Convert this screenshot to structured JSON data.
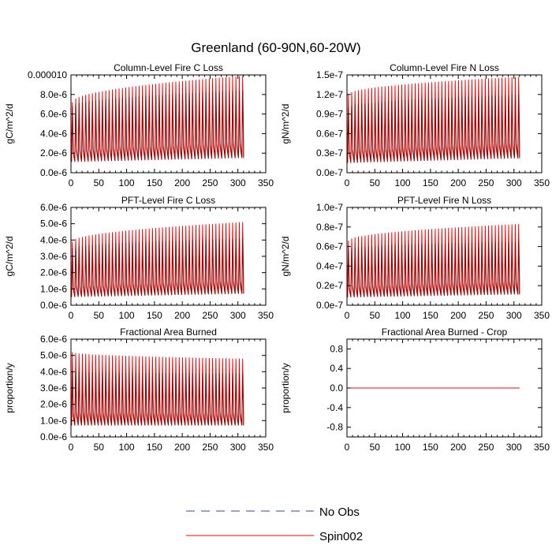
{
  "figure": {
    "title": "Greenland (60-90N,60-20W)"
  },
  "legend": {
    "items": [
      {
        "label": "No Obs",
        "color": "#3344aa",
        "style": "dashed"
      },
      {
        "label": "Spin002",
        "color": "#ff0000",
        "style": "solid"
      }
    ]
  },
  "chart_data": [
    {
      "type": "line",
      "title": "Column-Level Fire C Loss",
      "ylabel": "gC/m^2/d",
      "xlim": [
        0,
        350
      ],
      "ylim": [
        0,
        1e-05
      ],
      "xticks": [
        0,
        50,
        100,
        150,
        200,
        250,
        300,
        350
      ],
      "xtick_labels": [
        "0",
        "50",
        "100",
        "150",
        "200",
        "250",
        "300",
        "350"
      ],
      "yticks": [
        0,
        2e-06,
        4e-06,
        6e-06,
        8e-06,
        1e-05
      ],
      "ytick_labels": [
        "0.0e-6",
        "2.0e-6",
        "4.0e-6",
        "6.0e-6",
        "8.0e-6",
        "0.000010"
      ],
      "series": [
        {
          "name": "Spin002",
          "color": "#ff0000",
          "x_start": 1,
          "x_end": 310,
          "period": 6,
          "peak_start": 7.2e-06,
          "peak_end": 9.9e-06,
          "trough_start": 1.2e-06,
          "trough_end": 1.6e-06
        },
        {
          "name": "",
          "color": "#a00000",
          "x_start": 1,
          "x_end": 310,
          "period": 6,
          "peak_start": 6.8e-06,
          "peak_end": 8.4e-06,
          "trough_start": 1.1e-06,
          "trough_end": 1.5e-06
        }
      ]
    },
    {
      "type": "line",
      "title": "Column-Level Fire N Loss",
      "ylabel": "gN/m^2/d",
      "xlim": [
        0,
        350
      ],
      "ylim": [
        0,
        1.5e-07
      ],
      "xticks": [
        0,
        50,
        100,
        150,
        200,
        250,
        300,
        350
      ],
      "xtick_labels": [
        "0",
        "50",
        "100",
        "150",
        "200",
        "250",
        "300",
        "350"
      ],
      "yticks": [
        0,
        3e-08,
        6e-08,
        9e-08,
        1.2e-07,
        1.5e-07
      ],
      "ytick_labels": [
        "0.0e-7",
        "0.3e-7",
        "0.6e-7",
        "0.9e-7",
        "1.2e-7",
        "1.5e-7"
      ],
      "series": [
        {
          "name": "Spin002",
          "color": "#ff0000",
          "x_start": 1,
          "x_end": 310,
          "period": 6,
          "peak_start": 1.2e-07,
          "peak_end": 1.47e-07,
          "trough_start": 1.6e-08,
          "trough_end": 2.4e-08
        },
        {
          "name": "",
          "color": "#a00000",
          "x_start": 1,
          "x_end": 310,
          "period": 6,
          "peak_start": 1e-07,
          "peak_end": 1.2e-07,
          "trough_start": 1.5e-08,
          "trough_end": 2.2e-08
        }
      ]
    },
    {
      "type": "line",
      "title": "PFT-Level Fire C Loss",
      "ylabel": "gC/m^2/d",
      "xlim": [
        0,
        350
      ],
      "ylim": [
        0,
        6e-06
      ],
      "xticks": [
        0,
        50,
        100,
        150,
        200,
        250,
        300,
        350
      ],
      "xtick_labels": [
        "0",
        "50",
        "100",
        "150",
        "200",
        "250",
        "300",
        "350"
      ],
      "yticks": [
        0,
        1e-06,
        2e-06,
        3e-06,
        4e-06,
        5e-06,
        6e-06
      ],
      "ytick_labels": [
        "0.0e-6",
        "1.0e-6",
        "2.0e-6",
        "3.0e-6",
        "4.0e-6",
        "5.0e-6",
        "6.0e-6"
      ],
      "series": [
        {
          "name": "Spin002",
          "color": "#ff0000",
          "x_start": 1,
          "x_end": 310,
          "period": 6,
          "peak_start": 3.9e-06,
          "peak_end": 5.1e-06,
          "trough_start": 5.5e-07,
          "trough_end": 7.5e-07
        },
        {
          "name": "",
          "color": "#a00000",
          "x_start": 1,
          "x_end": 310,
          "period": 6,
          "peak_start": 3.5e-06,
          "peak_end": 4.1e-06,
          "trough_start": 5e-07,
          "trough_end": 7e-07
        }
      ]
    },
    {
      "type": "line",
      "title": "PFT-Level Fire N Loss",
      "ylabel": "gN/m^2/d",
      "xlim": [
        0,
        350
      ],
      "ylim": [
        0,
        1e-07
      ],
      "xticks": [
        0,
        50,
        100,
        150,
        200,
        250,
        300,
        350
      ],
      "xtick_labels": [
        "0",
        "50",
        "100",
        "150",
        "200",
        "250",
        "300",
        "350"
      ],
      "yticks": [
        0,
        2e-08,
        4e-08,
        6e-08,
        8e-08,
        1e-07
      ],
      "ytick_labels": [
        "0.0e-7",
        "0.2e-7",
        "0.4e-7",
        "0.6e-7",
        "0.8e-7",
        "1.0e-7"
      ],
      "series": [
        {
          "name": "Spin002",
          "color": "#ff0000",
          "x_start": 1,
          "x_end": 310,
          "period": 6,
          "peak_start": 6.6e-08,
          "peak_end": 8.3e-08,
          "trough_start": 9e-09,
          "trough_end": 1.2e-08
        },
        {
          "name": "",
          "color": "#a00000",
          "x_start": 1,
          "x_end": 310,
          "period": 6,
          "peak_start": 5.8e-08,
          "peak_end": 6.5e-08,
          "trough_start": 8e-09,
          "trough_end": 1.1e-08
        }
      ]
    },
    {
      "type": "line",
      "title": "Fractional Area Burned",
      "ylabel": "proportion/y",
      "xlim": [
        0,
        350
      ],
      "ylim": [
        0,
        6e-06
      ],
      "xticks": [
        0,
        50,
        100,
        150,
        200,
        250,
        300,
        350
      ],
      "xtick_labels": [
        "0",
        "50",
        "100",
        "150",
        "200",
        "250",
        "300",
        "350"
      ],
      "yticks": [
        0,
        1e-06,
        2e-06,
        3e-06,
        4e-06,
        5e-06,
        6e-06
      ],
      "ytick_labels": [
        "0.0e-6",
        "1.0e-6",
        "2.0e-6",
        "3.0e-6",
        "4.0e-6",
        "5.0e-6",
        "6.0e-6"
      ],
      "series": [
        {
          "name": "Spin002",
          "color": "#ff0000",
          "x_start": 1,
          "x_end": 310,
          "period": 6,
          "peak_start": 5.2e-06,
          "peak_end": 4.8e-06,
          "trough_start": 7.5e-07,
          "trough_end": 7.5e-07
        },
        {
          "name": "",
          "color": "#a00000",
          "x_start": 1,
          "x_end": 310,
          "period": 6,
          "peak_start": 4e-06,
          "peak_end": 3.9e-06,
          "trough_start": 7e-07,
          "trough_end": 7e-07
        }
      ]
    },
    {
      "type": "line",
      "title": "Fractional Area Burned - Crop",
      "ylabel": "proportion/y",
      "xlim": [
        0,
        350
      ],
      "ylim": [
        -1.0,
        1.0
      ],
      "xticks": [
        0,
        50,
        100,
        150,
        200,
        250,
        300,
        350
      ],
      "xtick_labels": [
        "0",
        "50",
        "100",
        "150",
        "200",
        "250",
        "300",
        "350"
      ],
      "yticks": [
        -0.8,
        -0.4,
        0.0,
        0.4,
        0.8
      ],
      "ytick_labels": [
        "-0.8",
        "-0.4",
        "0.0",
        "0.4",
        "0.8"
      ],
      "series": [
        {
          "name": "Spin002",
          "color": "#ff0000",
          "x_start": 1,
          "x_end": 310,
          "period": 0,
          "peak_start": 0,
          "peak_end": 0,
          "trough_start": 0,
          "trough_end": 0
        }
      ]
    }
  ]
}
